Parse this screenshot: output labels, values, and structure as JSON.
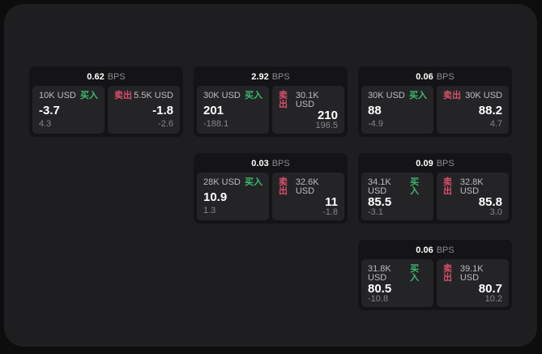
{
  "labels": {
    "buy": "买入",
    "sell": "卖出",
    "bps": "BPS"
  },
  "colors": {
    "background": "#0d0d0d",
    "surface": "#1e1e20",
    "card": "#141416",
    "tile": "#242427",
    "buy": "#3cba6e",
    "sell": "#d9506a"
  },
  "cards": [
    {
      "bps": "0.62",
      "buy": {
        "size": "10K USD",
        "price": "-3.7",
        "sub": "4.3"
      },
      "sell": {
        "size": "5.5K USD",
        "price": "-1.8",
        "sub": "-2.6"
      }
    },
    {
      "bps": "2.92",
      "buy": {
        "size": "30K USD",
        "price": "201",
        "sub": "-188.1"
      },
      "sell": {
        "size": "30.1K USD",
        "price": "210",
        "sub": "196.5"
      }
    },
    {
      "bps": "0.06",
      "buy": {
        "size": "30K USD",
        "price": "88",
        "sub": "-4.9"
      },
      "sell": {
        "size": "30K USD",
        "price": "88.2",
        "sub": "4.7"
      }
    },
    {
      "bps": "0.03",
      "buy": {
        "size": "28K USD",
        "price": "10.9",
        "sub": "1.3"
      },
      "sell": {
        "size": "32.6K USD",
        "price": "11",
        "sub": "-1.8"
      }
    },
    {
      "bps": "0.09",
      "buy": {
        "size": "34.1K USD",
        "price": "85.5",
        "sub": "-3.1"
      },
      "sell": {
        "size": "32.8K USD",
        "price": "85.8",
        "sub": "3.0"
      }
    },
    {
      "bps": "0.06",
      "buy": {
        "size": "31.8K USD",
        "price": "80.5",
        "sub": "-10.8"
      },
      "sell": {
        "size": "39.1K USD",
        "price": "80.7",
        "sub": "10.2"
      }
    }
  ]
}
